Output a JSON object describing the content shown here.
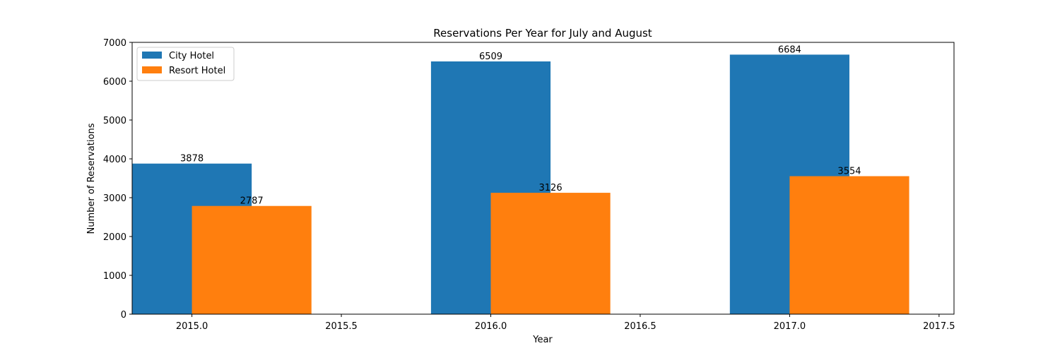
{
  "chart_data": {
    "type": "bar",
    "title": "Reservations Per Year for July and August",
    "xlabel": "Year",
    "ylabel": "Number of Reservations",
    "xlim": [
      2014.8,
      2017.55
    ],
    "ylim": [
      0,
      7000
    ],
    "xticks": [
      2015.0,
      2015.5,
      2016.0,
      2016.5,
      2017.0,
      2017.5
    ],
    "xtick_labels": [
      "2015.0",
      "2015.5",
      "2016.0",
      "2016.5",
      "2017.0",
      "2017.5"
    ],
    "yticks": [
      0,
      1000,
      2000,
      3000,
      4000,
      5000,
      6000,
      7000
    ],
    "ytick_labels": [
      "0",
      "1000",
      "2000",
      "3000",
      "4000",
      "5000",
      "6000",
      "7000"
    ],
    "grid": false,
    "legend_position": "top-left",
    "bar_width": 0.4,
    "series": [
      {
        "name": "City Hotel",
        "color": "#1f77b4",
        "x": [
          2015,
          2016,
          2017
        ],
        "values": [
          3878,
          6509,
          6684
        ],
        "labels": [
          "3878",
          "6509",
          "6684"
        ]
      },
      {
        "name": "Resort Hotel",
        "color": "#ff7f0e",
        "x": [
          2015.2,
          2016.2,
          2017.2
        ],
        "values": [
          2787,
          3126,
          3554
        ],
        "labels": [
          "2787",
          "3126",
          "3554"
        ]
      }
    ]
  }
}
